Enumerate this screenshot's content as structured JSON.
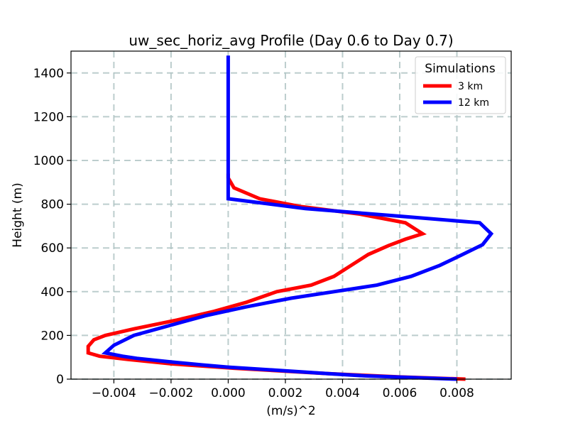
{
  "chart_data": {
    "type": "line",
    "title": "uw_sec_horiz_avg Profile (Day 0.6 to Day 0.7)",
    "xlabel": "(m/s)^2",
    "ylabel": "Height (m)",
    "xlim": [
      -0.0055,
      0.0099
    ],
    "ylim": [
      0,
      1500
    ],
    "xticks": [
      -0.004,
      -0.002,
      0.0,
      0.002,
      0.004,
      0.006,
      0.008
    ],
    "xtick_labels": [
      "−0.004",
      "−0.002",
      "0.000",
      "0.002",
      "0.004",
      "0.006",
      "0.008"
    ],
    "yticks": [
      0,
      200,
      400,
      600,
      800,
      1000,
      1200,
      1400
    ],
    "ytick_labels": [
      "0",
      "200",
      "400",
      "600",
      "800",
      "1000",
      "1200",
      "1400"
    ],
    "grid": true,
    "legend": {
      "title": "Simulations",
      "position": "top-right"
    },
    "series": [
      {
        "name": "3 km",
        "color": "#ff0000",
        "points": [
          [
            0.0083,
            0
          ],
          [
            0.006,
            10
          ],
          [
            0.0035,
            25
          ],
          [
            0.0002,
            50
          ],
          [
            -0.002,
            70
          ],
          [
            -0.0035,
            90
          ],
          [
            -0.0045,
            105
          ],
          [
            -0.0049,
            120
          ],
          [
            -0.0049,
            150
          ],
          [
            -0.0047,
            180
          ],
          [
            -0.0043,
            200
          ],
          [
            -0.0033,
            230
          ],
          [
            -0.0018,
            270
          ],
          [
            -0.0005,
            310
          ],
          [
            0.0006,
            350
          ],
          [
            0.0017,
            400
          ],
          [
            0.0029,
            430
          ],
          [
            0.0037,
            470
          ],
          [
            0.0043,
            520
          ],
          [
            0.0049,
            570
          ],
          [
            0.0056,
            610
          ],
          [
            0.0062,
            640
          ],
          [
            0.0068,
            665
          ],
          [
            0.0062,
            715
          ],
          [
            0.0046,
            755
          ],
          [
            0.0025,
            790
          ],
          [
            0.0011,
            825
          ],
          [
            0.0002,
            875
          ],
          [
            0.0,
            920
          ],
          [
            0.0,
            940
          ]
        ]
      },
      {
        "name": "12 km",
        "color": "#0000ff",
        "points": [
          [
            0.008,
            0
          ],
          [
            0.0048,
            15
          ],
          [
            0.0035,
            25
          ],
          [
            0.0018,
            40
          ],
          [
            0.0,
            55
          ],
          [
            -0.0009,
            65
          ],
          [
            -0.0021,
            80
          ],
          [
            -0.0032,
            95
          ],
          [
            -0.0037,
            105
          ],
          [
            -0.0043,
            120
          ],
          [
            -0.004,
            155
          ],
          [
            -0.0033,
            200
          ],
          [
            -0.0022,
            240
          ],
          [
            -0.0008,
            290
          ],
          [
            0.0006,
            330
          ],
          [
            0.0022,
            370
          ],
          [
            0.0037,
            400
          ],
          [
            0.0052,
            430
          ],
          [
            0.0064,
            470
          ],
          [
            0.0074,
            520
          ],
          [
            0.0082,
            570
          ],
          [
            0.0089,
            615
          ],
          [
            0.0092,
            665
          ],
          [
            0.0088,
            715
          ],
          [
            0.006,
            745
          ],
          [
            0.0027,
            780
          ],
          [
            0.0,
            825
          ],
          [
            0.0,
            900
          ],
          [
            0.0,
            1000
          ],
          [
            0.0,
            1200
          ],
          [
            0.0,
            1480
          ]
        ]
      }
    ]
  }
}
